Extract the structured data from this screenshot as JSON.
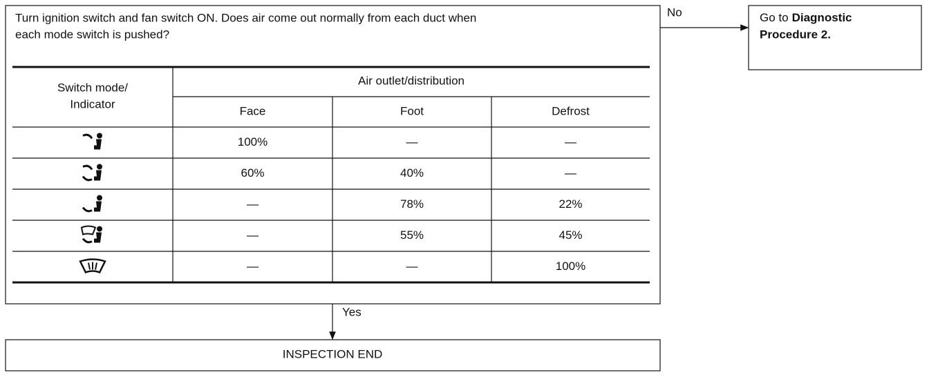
{
  "question": {
    "lines": [
      "Turn ignition switch and fan switch ON. Does air come out normally from each duct when",
      "each mode switch is pushed?"
    ]
  },
  "table": {
    "mode_header": [
      "Switch mode/",
      "Indicator"
    ],
    "group_header": "Air outlet/distribution",
    "columns": [
      "Face",
      "Foot",
      "Defrost"
    ],
    "rows": [
      [
        "100%",
        "—",
        "—"
      ],
      [
        "60%",
        "40%",
        "—"
      ],
      [
        "—",
        "78%",
        "22%"
      ],
      [
        "—",
        "55%",
        "45%"
      ],
      [
        "—",
        "—",
        "100%"
      ]
    ]
  },
  "branches": {
    "no": "No",
    "yes": "Yes"
  },
  "no_box": {
    "prefix": "Go to",
    "bold": [
      "Diagnostic",
      "Procedure 2."
    ]
  },
  "end_box": "INSPECTION END"
}
